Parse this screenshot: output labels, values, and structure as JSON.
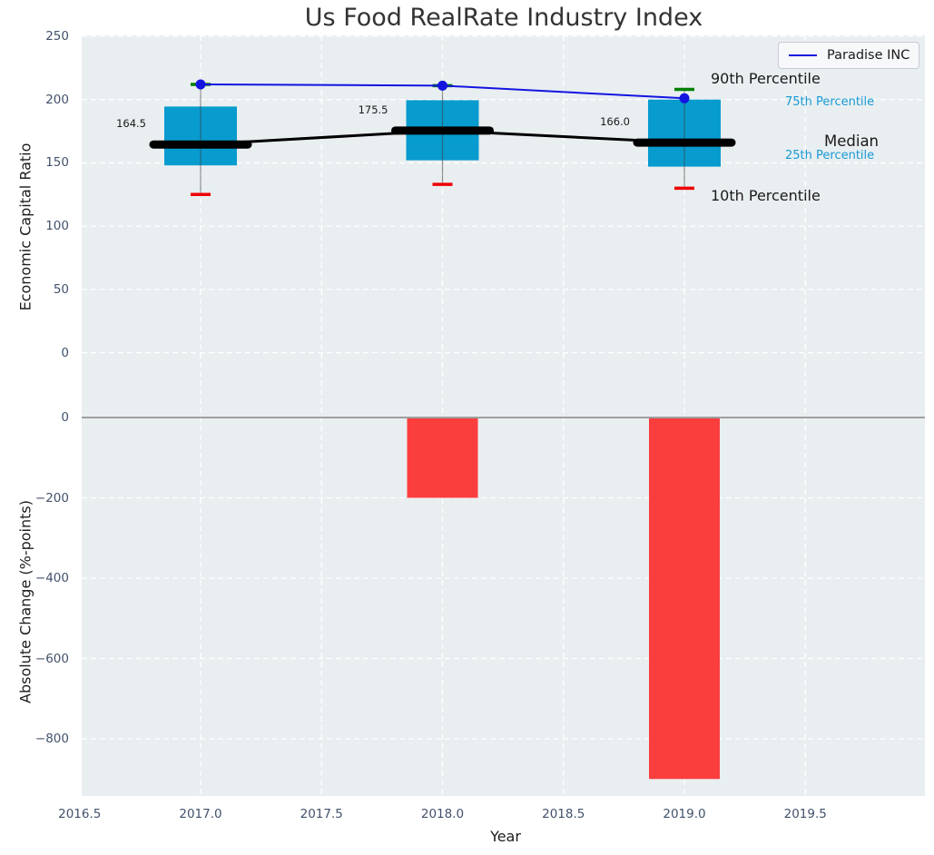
{
  "title": "Us Food RealRate Industry Index",
  "legend": {
    "label": "Paradise INC",
    "line_color": "#1414e0",
    "position": "upper right"
  },
  "colors": {
    "plot_bg": "#e9eef1",
    "grid": "#ffffff",
    "box": "#089bce",
    "bar": "#fa3d3d",
    "cap_low": "#ee0000",
    "cap_high": "#008000",
    "paradise_line": "#1414e0",
    "median_line": "#000000",
    "whisker": "#3c3c3c",
    "zero_line": "#9f9f9f",
    "tick_label": "#42526b",
    "annotation_dark": "#1a1a1a",
    "annotation_accent": "#179bd3"
  },
  "annotations": [
    {
      "text": "90th Percentile",
      "color": "#1a1a1a",
      "size": "large"
    },
    {
      "text": "75th Percentile",
      "color": "#179bd3",
      "size": "small"
    },
    {
      "text": "Median",
      "color": "#1a1a1a",
      "size": "large"
    },
    {
      "text": "25th Percentile",
      "color": "#179bd3",
      "size": "small"
    },
    {
      "text": "10th Percentile",
      "color": "#1a1a1a",
      "size": "large"
    }
  ],
  "chart_data": [
    {
      "type": "line",
      "title": "Us Food RealRate Industry Index",
      "ylabel": "Economic Capital Ratio",
      "x": [
        2017,
        2018,
        2019
      ],
      "xlim": [
        2016.5,
        2020.0
      ],
      "ylim": [
        -43,
        251
      ],
      "grid": true,
      "legend_position": "upper right",
      "yticks": [
        0,
        50,
        100,
        150,
        200,
        250
      ],
      "ytick_labels": [
        "0",
        "50",
        "100",
        "150",
        "200",
        "250"
      ],
      "series": [
        {
          "name": "Paradise INC",
          "role": "company-line",
          "values": [
            212,
            211,
            201
          ]
        },
        {
          "name": "90th Percentile",
          "role": "whisker-cap-high",
          "values": [
            212,
            211,
            208
          ]
        },
        {
          "name": "75th Percentile",
          "role": "box-top",
          "values": [
            194.5,
            199.5,
            200
          ]
        },
        {
          "name": "Median",
          "role": "median-line",
          "values": [
            164.5,
            175.5,
            166.0
          ]
        },
        {
          "name": "25th Percentile",
          "role": "box-bottom",
          "values": [
            148,
            152,
            147
          ]
        },
        {
          "name": "10th Percentile",
          "role": "whisker-cap-low",
          "values": [
            125,
            133,
            130
          ]
        }
      ],
      "point_labels": [
        "164.5",
        "175.5",
        "166.0"
      ]
    },
    {
      "type": "bar",
      "ylabel": "Absolute Change (%-points)",
      "xlabel": "Year",
      "x": [
        2017,
        2018,
        2019
      ],
      "values": [
        0,
        -200,
        -900
      ],
      "ylim": [
        -942,
        25
      ],
      "yticks": [
        0,
        -200,
        -400,
        -600,
        -800
      ],
      "ytick_labels": [
        "0",
        "−200",
        "−400",
        "−600",
        "−800"
      ],
      "xticks": [
        2016.5,
        2017.0,
        2017.5,
        2018.0,
        2018.5,
        2019.0,
        2019.5
      ],
      "xtick_labels": [
        "2016.5",
        "2017.0",
        "2017.5",
        "2018.0",
        "2018.5",
        "2019.0",
        "2019.5"
      ],
      "grid": true
    }
  ]
}
